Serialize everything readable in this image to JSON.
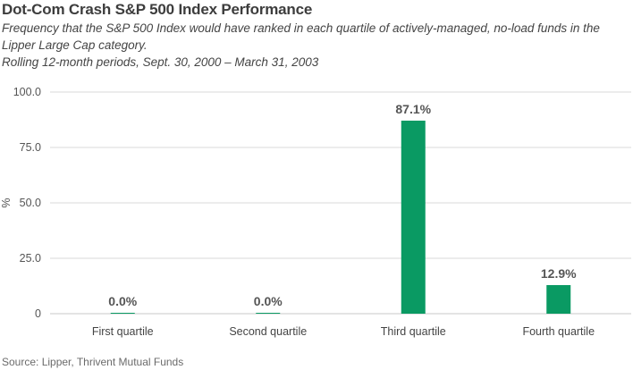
{
  "header": {
    "title": "Dot-Com Crash S&P 500 Index Performance",
    "subtitle_line1": "Frequency that the S&P 500 Index would have ranked in each quartile of actively-managed, no-load funds in the Lipper Large Cap category.",
    "subtitle_line2": "Rolling 12-month periods, Sept. 30, 2000 – March 31, 2003"
  },
  "footer": {
    "source": "Source: Lipper, Thrivent Mutual Funds"
  },
  "chart_data": {
    "type": "bar",
    "title": "Dot-Com Crash S&P 500 Index Performance",
    "categories": [
      "First quartile",
      "Second quartile",
      "Third quartile",
      "Fourth quartile"
    ],
    "values": [
      0.0,
      0.0,
      87.1,
      12.9
    ],
    "data_labels": [
      "0.0%",
      "0.0%",
      "87.1%",
      "12.9%"
    ],
    "xlabel": "",
    "ylabel": "%",
    "ylim": [
      0,
      100
    ],
    "yticks": [
      0,
      25,
      50,
      75,
      100
    ],
    "ytick_labels": [
      "0",
      "25.0",
      "50.0",
      "75.0",
      "100.0"
    ],
    "grid": true,
    "legend": "none",
    "bar_color": "#0a9a63",
    "gridline_color": "#d9d9d9",
    "axis_color": "#c8c8c8"
  }
}
